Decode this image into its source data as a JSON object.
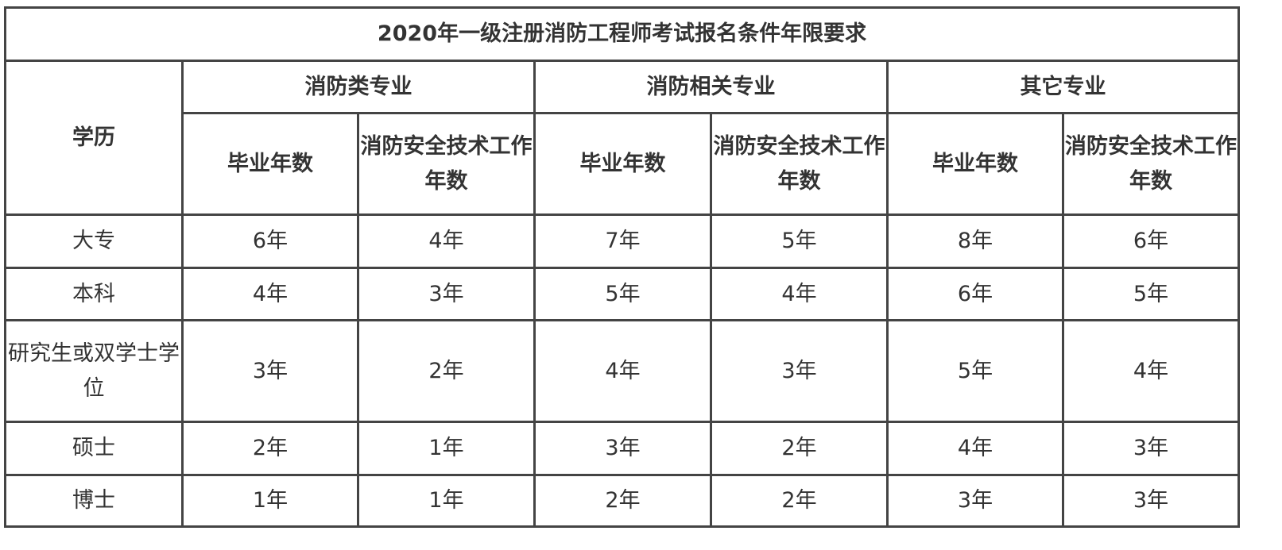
{
  "title": "2020年一级注册消防工程师考试报名条件年限要求",
  "education_header": "学历",
  "groups": [
    "消防类专业",
    "消防相关专业",
    "其它专业"
  ],
  "sub_headers": [
    "毕业年数",
    "消防安全技术工作年数"
  ],
  "rows": [
    {
      "education": "大专",
      "values": [
        "6年",
        "4年",
        "7年",
        "5年",
        "8年",
        "6年"
      ]
    },
    {
      "education": "本科",
      "values": [
        "4年",
        "3年",
        "5年",
        "4年",
        "6年",
        "5年"
      ]
    },
    {
      "education": "研究生或双学士学位",
      "values": [
        "3年",
        "2年",
        "4年",
        "3年",
        "5年",
        "4年"
      ]
    },
    {
      "education": "硕士",
      "values": [
        "2年",
        "1年",
        "3年",
        "2年",
        "4年",
        "3年"
      ]
    },
    {
      "education": "博士",
      "values": [
        "1年",
        "1年",
        "2年",
        "2年",
        "3年",
        "3年"
      ]
    }
  ]
}
